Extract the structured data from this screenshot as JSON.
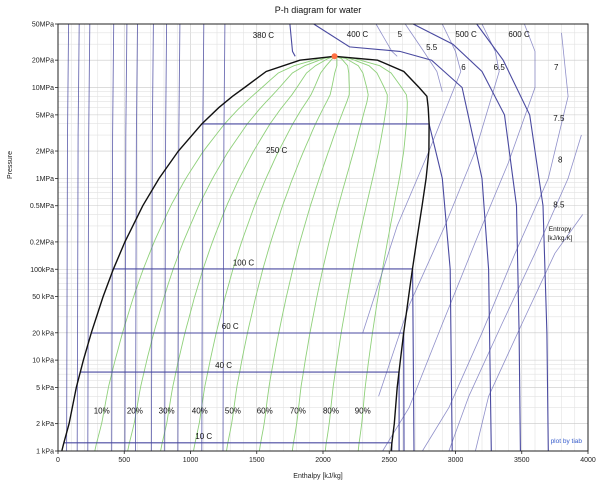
{
  "chart_data": {
    "type": "line",
    "title": "P-h diagram for water",
    "xlabel": "Enthalpy [kJ/kg]",
    "ylabel": "Pressure",
    "xlim": [
      0,
      4000
    ],
    "ylim_kpa": [
      1,
      50000
    ],
    "y_scale": "log",
    "grid": true,
    "x_ticks": [
      {
        "value": 0,
        "label": "0"
      },
      {
        "value": 500,
        "label": "500"
      },
      {
        "value": 1000,
        "label": "1000"
      },
      {
        "value": 1500,
        "label": "1500"
      },
      {
        "value": 2000,
        "label": "2000"
      },
      {
        "value": 2500,
        "label": "2500"
      },
      {
        "value": 3000,
        "label": "3000"
      },
      {
        "value": 3500,
        "label": "3500"
      },
      {
        "value": 4000,
        "label": "4000"
      }
    ],
    "y_ticks": [
      {
        "value": 50000,
        "label": "50MPa"
      },
      {
        "value": 20000,
        "label": "20MPa"
      },
      {
        "value": 10000,
        "label": "10MPa"
      },
      {
        "value": 5000,
        "label": "5MPa"
      },
      {
        "value": 2000,
        "label": "2MPa"
      },
      {
        "value": 1000,
        "label": "1MPa"
      },
      {
        "value": 500,
        "label": "0.5MPa"
      },
      {
        "value": 200,
        "label": "0.2MPa"
      },
      {
        "value": 100,
        "label": "100kPa"
      },
      {
        "value": 50,
        "label": "50 kPa"
      },
      {
        "value": 20,
        "label": "20 kPa"
      },
      {
        "value": 10,
        "label": "10 kPa"
      },
      {
        "value": 5,
        "label": "5 kPa"
      },
      {
        "value": 2,
        "label": "2 kPa"
      },
      {
        "value": 1,
        "label": "1 kPa"
      }
    ],
    "saturation_dome": {
      "liquid_h": [
        29,
        42,
        84,
        138,
        192,
        251,
        340,
        417,
        505,
        640,
        763,
        909,
        1087,
        1213,
        1317,
        1408,
        1571,
        1826,
        2087
      ],
      "vapor_h": [
        2514,
        2519,
        2538,
        2560,
        2584,
        2609,
        2646,
        2675,
        2706,
        2748,
        2778,
        2799,
        2801,
        2794,
        2784,
        2725,
        2610,
        2412,
        2087
      ],
      "p_kpa": [
        1,
        1.2,
        2,
        5,
        10,
        20,
        50,
        100,
        200,
        500,
        1000,
        2000,
        4000,
        6000,
        8000,
        10000,
        15000,
        20000,
        22064
      ]
    },
    "critical_point": {
      "h": 2087,
      "p_kpa": 22064,
      "color": "#ff7043"
    },
    "isotherms": [
      {
        "label": "10 C",
        "h": [
          42,
          2519,
          2519
        ],
        "p_kpa": [
          1.23,
          1.23,
          1
        ]
      },
      {
        "label": "40 C",
        "h": [
          168,
          2574,
          2574
        ],
        "p_kpa": [
          7.38,
          7.38,
          1
        ]
      },
      {
        "label": "60 C",
        "h": [
          251,
          2609,
          2611
        ],
        "p_kpa": [
          19.9,
          19.9,
          1
        ]
      },
      {
        "label": "100 C",
        "h": [
          419,
          2676,
          2687
        ],
        "p_kpa": [
          101,
          101,
          1
        ]
      },
      {
        "label": "250 C",
        "h": [
          1085,
          2801,
          2900,
          2960,
          2975
        ],
        "p_kpa": [
          3976,
          3976,
          1000,
          100,
          1
        ]
      },
      {
        "label": "380 C",
        "h": [
          1750,
          1770,
          1790
        ],
        "p_kpa": [
          50000,
          25000,
          22064
        ]
      },
      {
        "label": "400 C",
        "h": [
          1930,
          2200,
          2580,
          2820,
          3050,
          3200,
          3250,
          3270
        ],
        "p_kpa": [
          50000,
          28000,
          25000,
          20000,
          10000,
          1000,
          100,
          1
        ]
      },
      {
        "label": "500 C",
        "h": [
          2680,
          2980,
          3200,
          3370,
          3460,
          3480,
          3490
        ],
        "p_kpa": [
          50000,
          30000,
          15000,
          5000,
          500,
          20,
          1
        ]
      },
      {
        "label": "600 C",
        "h": [
          3160,
          3360,
          3560,
          3660,
          3690,
          3700
        ],
        "p_kpa": [
          50000,
          20000,
          5000,
          500,
          20,
          1
        ]
      }
    ],
    "compressed_liquid_lines_h": [
      80,
      160,
      240,
      420,
      520,
      600,
      720,
      820,
      920,
      1100,
      1260
    ],
    "quality_lines": [
      {
        "label": "10%",
        "x": 0.1
      },
      {
        "label": "20%",
        "x": 0.2
      },
      {
        "label": "30%",
        "x": 0.3
      },
      {
        "label": "40%",
        "x": 0.4
      },
      {
        "label": "50%",
        "x": 0.5
      },
      {
        "label": "60%",
        "x": 0.6
      },
      {
        "label": "70%",
        "x": 0.7
      },
      {
        "label": "80%",
        "x": 0.8
      },
      {
        "label": "90%",
        "x": 0.9
      }
    ],
    "entropy_lines": [
      {
        "label": "5",
        "h": [
          2400,
          2520,
          2560
        ],
        "p_kpa": [
          50000,
          25000,
          22064
        ]
      },
      {
        "label": "5.5",
        "h": [
          2620,
          2760,
          2860,
          2900
        ],
        "p_kpa": [
          50000,
          25000,
          15000,
          9000
        ]
      },
      {
        "label": "6",
        "h": [
          2900,
          3000,
          3040,
          2800,
          2560,
          2300
        ],
        "p_kpa": [
          50000,
          25000,
          15000,
          2000,
          300,
          20
        ]
      },
      {
        "label": "6.5",
        "h": [
          3200,
          3300,
          3330,
          3150,
          2920,
          2650,
          2420
        ],
        "p_kpa": [
          50000,
          25000,
          15000,
          2000,
          300,
          40,
          4
        ]
      },
      {
        "label": "7",
        "h": [
          3520,
          3600,
          3600,
          3400,
          3150,
          2900,
          2650,
          2450
        ],
        "p_kpa": [
          50000,
          25000,
          10000,
          1500,
          200,
          25,
          3,
          1
        ]
      },
      {
        "label": "7.5",
        "h": [
          3800,
          3850,
          3700,
          3450,
          3200,
          2950,
          2750
        ],
        "p_kpa": [
          40000,
          8000,
          1000,
          150,
          20,
          3,
          1
        ]
      },
      {
        "label": "8",
        "h": [
          3950,
          3850,
          3600,
          3350,
          3100,
          2950
        ],
        "p_kpa": [
          3000,
          1000,
          150,
          25,
          4,
          1
        ]
      },
      {
        "label": "8.5",
        "h": [
          3960,
          3750,
          3500,
          3250,
          3150
        ],
        "p_kpa": [
          400,
          150,
          25,
          4,
          1
        ]
      }
    ],
    "annotations": [
      {
        "text": "380 C",
        "h": 1550,
        "p_kpa": 35000
      },
      {
        "text": "400 C",
        "h": 2260,
        "p_kpa": 36000
      },
      {
        "text": "5",
        "h": 2580,
        "p_kpa": 36000
      },
      {
        "text": "5.5",
        "h": 2820,
        "p_kpa": 26000
      },
      {
        "text": "500 C",
        "h": 3080,
        "p_kpa": 36000
      },
      {
        "text": "600 C",
        "h": 3480,
        "p_kpa": 36000
      },
      {
        "text": "6",
        "h": 3060,
        "p_kpa": 15500
      },
      {
        "text": "6.5",
        "h": 3330,
        "p_kpa": 15500
      },
      {
        "text": "7",
        "h": 3760,
        "p_kpa": 15500
      },
      {
        "text": "7.5",
        "h": 3780,
        "p_kpa": 4300
      },
      {
        "text": "8",
        "h": 3790,
        "p_kpa": 1500
      },
      {
        "text": "8.5",
        "h": 3780,
        "p_kpa": 480
      },
      {
        "text": "250 C",
        "h": 1650,
        "p_kpa": 1900
      },
      {
        "text": "100 C",
        "h": 1400,
        "p_kpa": 110
      },
      {
        "text": "60 C",
        "h": 1300,
        "p_kpa": 22
      },
      {
        "text": "40 C",
        "h": 1250,
        "p_kpa": 8.2
      },
      {
        "text": "10 C",
        "h": 1100,
        "p_kpa": 1.35
      },
      {
        "text": "10%",
        "h": 330,
        "p_kpa": 2.6
      },
      {
        "text": "20%",
        "h": 580,
        "p_kpa": 2.6
      },
      {
        "text": "30%",
        "h": 820,
        "p_kpa": 2.6
      },
      {
        "text": "40%",
        "h": 1070,
        "p_kpa": 2.6
      },
      {
        "text": "50%",
        "h": 1320,
        "p_kpa": 2.6
      },
      {
        "text": "60%",
        "h": 1560,
        "p_kpa": 2.6
      },
      {
        "text": "70%",
        "h": 1810,
        "p_kpa": 2.6
      },
      {
        "text": "80%",
        "h": 2060,
        "p_kpa": 2.6
      },
      {
        "text": "90%",
        "h": 2300,
        "p_kpa": 2.6
      }
    ],
    "entropy_label": [
      "Entropy",
      "[kJ/kg.K]"
    ],
    "credit": "plot by tiab",
    "colors": {
      "dome": "#111111",
      "isotherm": "#4a4aa0",
      "entropy": "#6b6bb8",
      "quality": "#8fd07a",
      "grid": "#c8c8c8",
      "grid_minor": "#e2e2e2"
    }
  }
}
